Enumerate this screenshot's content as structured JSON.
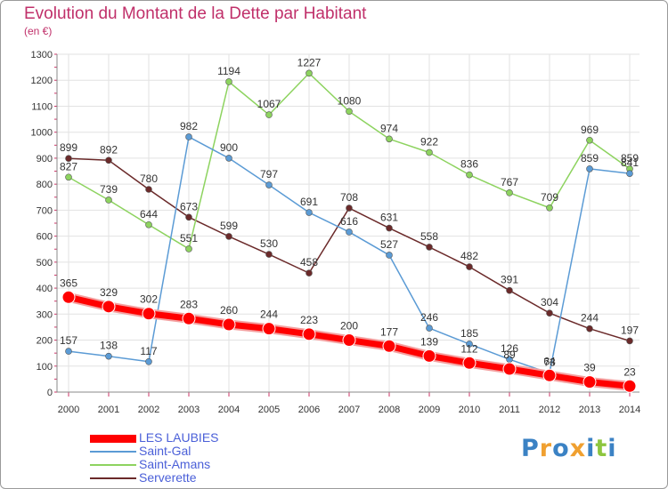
{
  "header": {
    "title": "Evolution du Montant de la Dette par Habitant",
    "subtitle": "(en €)"
  },
  "chart_data": {
    "type": "line",
    "title": "Evolution du Montant de la Dette par Habitant",
    "subtitle": "(en €)",
    "xlabel": "",
    "ylabel": "",
    "x": [
      "2000",
      "2001",
      "2002",
      "2003",
      "2004",
      "2005",
      "2006",
      "2007",
      "2008",
      "2009",
      "2010",
      "2011",
      "2012",
      "2013",
      "2014"
    ],
    "ylim": [
      0,
      1300
    ],
    "yticks": [
      0,
      100,
      200,
      300,
      400,
      500,
      600,
      700,
      800,
      900,
      1000,
      1100,
      1200,
      1300
    ],
    "grid": true,
    "legend": "bottom-left",
    "series": [
      {
        "name": "LES LAUBIES",
        "color": "#ff0000",
        "values": [
          365,
          329,
          302,
          283,
          260,
          244,
          223,
          200,
          177,
          139,
          112,
          89,
          64,
          39,
          23
        ]
      },
      {
        "name": "Saint-Gal",
        "color": "#5b9bd5",
        "values": [
          157,
          138,
          117,
          982,
          900,
          797,
          691,
          616,
          527,
          246,
          185,
          126,
          73,
          859,
          841
        ]
      },
      {
        "name": "Saint-Amans",
        "color": "#8dd35f",
        "values": [
          827,
          739,
          644,
          551,
          1194,
          1067,
          1227,
          1080,
          974,
          922,
          836,
          767,
          709,
          969,
          859
        ]
      },
      {
        "name": "Serverette",
        "color": "#6b2a2a",
        "values": [
          899,
          892,
          780,
          673,
          599,
          530,
          458,
          708,
          631,
          558,
          482,
          391,
          304,
          244,
          197
        ]
      }
    ]
  },
  "logo": {
    "letters": [
      "P",
      "r",
      "o",
      "x",
      "i",
      "t",
      "i"
    ],
    "colors": [
      "#3b82c4",
      "#f0a030",
      "#3b82c4",
      "#f0a030",
      "#3b82c4",
      "#8dc63f",
      "#3b82c4"
    ]
  }
}
